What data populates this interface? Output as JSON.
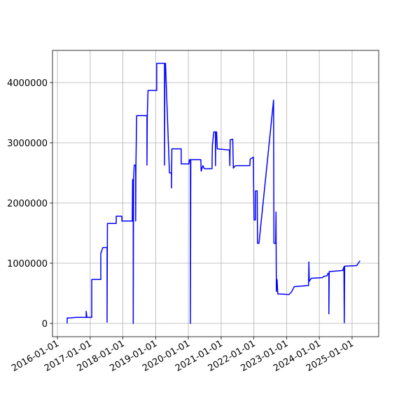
{
  "chart_data": {
    "type": "line",
    "x": [
      "2016-04-19",
      "2016-04-19",
      "2016-05-21",
      "2016-07-23",
      "2016-11-17",
      "2016-11-17",
      "2016-11-25",
      "2017-01-18",
      "2017-01-18",
      "2017-04-29",
      "2017-04-29",
      "2017-05-22",
      "2017-07-08",
      "2017-07-08",
      "2017-07-12",
      "2017-10-18",
      "2017-10-18",
      "2017-12-20",
      "2017-12-20",
      "2018-04-15",
      "2018-04-19",
      "2018-04-26",
      "2018-04-26",
      "2018-04-30",
      "2018-05-07",
      "2018-05-23",
      "2018-05-23",
      "2018-05-26",
      "2018-06-03",
      "2018-09-26",
      "2018-09-26",
      "2018-09-30",
      "2018-10-08",
      "2019-01-13",
      "2019-01-13",
      "2019-04-10",
      "2019-04-10",
      "2019-04-14",
      "2019-04-21",
      "2019-06-04",
      "2019-06-27",
      "2019-06-27",
      "2019-07-01",
      "2019-10-13",
      "2019-10-13",
      "2020-01-08",
      "2020-01-12",
      "2020-01-24",
      "2020-01-24",
      "2020-01-28",
      "2020-05-19",
      "2020-05-23",
      "2020-06-11",
      "2020-06-27",
      "2020-09-21",
      "2020-09-25",
      "2020-10-11",
      "2020-10-30",
      "2020-10-30",
      "2020-11-03",
      "2020-11-11",
      "2020-11-19",
      "2021-04-04",
      "2021-04-08",
      "2021-04-12",
      "2021-05-10",
      "2021-05-17",
      "2021-06-10",
      "2021-11-17",
      "2021-11-21",
      "2021-12-26",
      "2022-01-03",
      "2022-01-19",
      "2022-01-19",
      "2022-02-07",
      "2022-02-11",
      "2022-02-27",
      "2022-08-09",
      "2022-08-13",
      "2022-09-01",
      "2022-09-05",
      "2022-09-09",
      "2022-09-17",
      "2022-09-25",
      "2023-01-28",
      "2023-02-24",
      "2023-03-27",
      "2023-09-03",
      "2023-09-07",
      "2023-09-11",
      "2023-10-05",
      "2024-02-06",
      "2024-02-18",
      "2024-03-28",
      "2024-04-05",
      "2024-04-17",
      "2024-04-17",
      "2024-04-21",
      "2024-09-20",
      "2024-10-02",
      "2024-10-06",
      "2024-10-10",
      "2025-02-23",
      "2025-03-15",
      "2025-03-31"
    ],
    "series": [
      {
        "color": "#0000ff",
        "values": [
          0,
          90000,
          90000,
          100000,
          100000,
          200000,
          100000,
          100000,
          730000,
          730000,
          1160000,
          1260000,
          1260000,
          20000,
          1660000,
          1660000,
          1780000,
          1780000,
          1700000,
          1700000,
          2390000,
          2390000,
          0,
          2390000,
          2630000,
          2630000,
          1700000,
          2630000,
          3450000,
          3450000,
          2630000,
          3450000,
          3870000,
          3870000,
          4320000,
          4320000,
          2630000,
          4320000,
          4320000,
          2500000,
          2500000,
          2250000,
          2900000,
          2900000,
          2650000,
          2650000,
          2720000,
          2720000,
          0,
          2720000,
          2720000,
          2530000,
          2620000,
          2570000,
          2570000,
          2960000,
          3180000,
          3180000,
          2620000,
          3180000,
          3180000,
          2900000,
          2880000,
          2620000,
          3050000,
          3060000,
          2580000,
          2620000,
          2620000,
          2730000,
          2760000,
          1720000,
          1720000,
          2200000,
          2200000,
          1330000,
          1330000,
          3710000,
          1330000,
          1330000,
          1850000,
          530000,
          730000,
          490000,
          480000,
          520000,
          610000,
          630000,
          1020000,
          700000,
          750000,
          760000,
          780000,
          790000,
          830000,
          830000,
          160000,
          860000,
          880000,
          940000,
          10000,
          950000,
          960000,
          1010000,
          1040000
        ]
      }
    ],
    "xlim": [
      "2015-11-07",
      "2025-10-25"
    ],
    "xticks": [
      "2016-01-01",
      "2017-01-01",
      "2018-01-01",
      "2019-01-01",
      "2020-01-01",
      "2021-01-01",
      "2022-01-01",
      "2023-01-01",
      "2024-01-01",
      "2025-01-01"
    ],
    "ylim": [
      -221000,
      4535000
    ],
    "yticks": [
      0,
      1000000,
      2000000,
      3000000,
      4000000
    ],
    "grid": true
  }
}
